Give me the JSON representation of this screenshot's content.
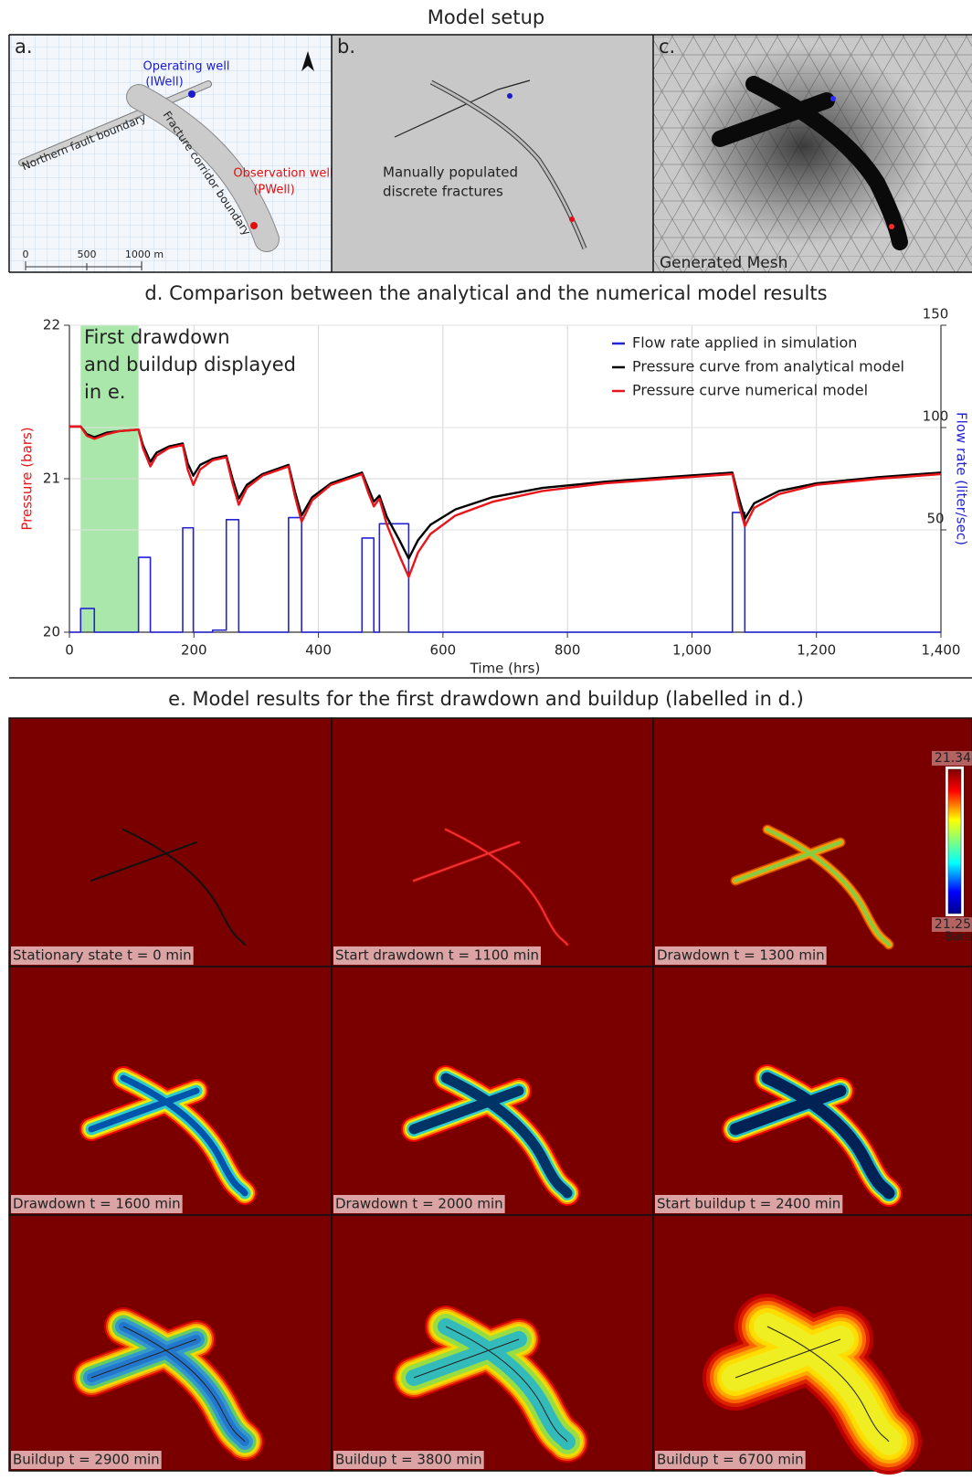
{
  "setup": {
    "title": "Model setup",
    "panel_a": {
      "label": "a.",
      "operating_well": [
        "Operating well",
        "(IWell)"
      ],
      "observation_well": [
        "Observation well",
        "(PWell)"
      ],
      "fault": "Northern fault boundary",
      "corridor": "Fracture corridor boundary",
      "scale": [
        "0",
        "500",
        "1000 m"
      ]
    },
    "panel_b": {
      "label": "b.",
      "note": [
        "Manually populated",
        "discrete fractures"
      ]
    },
    "panel_c": {
      "label": "c.",
      "note": "Generated Mesh"
    }
  },
  "chart_data": {
    "type": "line",
    "title": "d. Comparison between the analytical and the numerical model results",
    "x_label": "Time (hrs)",
    "y_label": "Pressure (bars)",
    "y2_label": "Flow rate (liter/sec)",
    "annotation": [
      "First drawdown",
      "and buildup displayed",
      "in e."
    ],
    "highlight_x": [
      18,
      111
    ],
    "xlim": [
      0,
      1400
    ],
    "xticks": [
      0,
      200,
      400,
      600,
      800,
      {
        "value": 1000,
        "label": "1,000"
      },
      {
        "value": 1200,
        "label": "1,200"
      },
      {
        "value": 1400,
        "label": "1,400"
      }
    ],
    "ylim": [
      20,
      22
    ],
    "yticks": [
      20,
      21,
      22
    ],
    "y2lim": [
      0,
      150
    ],
    "y2ticks": [
      50,
      100,
      150
    ],
    "grid": true,
    "legend": "upper right",
    "series": [
      {
        "name": "Flow rate applied in simulation",
        "color": "#2323d6",
        "axis": "y2",
        "x": [
          0,
          18,
          18,
          40,
          40,
          111,
          111,
          130,
          130,
          182,
          182,
          199,
          199,
          230,
          230,
          252,
          252,
          272,
          272,
          352,
          352,
          373,
          373,
          470,
          470,
          489,
          489,
          498,
          498,
          545,
          545,
          1065,
          1065,
          1085,
          1085,
          1400
        ],
        "values": [
          0,
          0,
          11.6,
          11.6,
          0,
          0,
          36.6,
          36.6,
          0,
          0,
          51,
          51,
          0,
          0,
          1,
          1,
          55,
          55,
          0,
          0,
          56,
          56,
          0,
          0,
          46,
          46,
          0,
          0,
          53,
          53,
          0,
          0,
          58.5,
          58.5,
          0,
          0
        ]
      },
      {
        "name": "Pressure curve from analytical model",
        "color": "#000000",
        "axis": "y",
        "x": [
          0,
          18,
          28,
          40,
          60,
          80,
          111,
          118,
          130,
          140,
          160,
          182,
          190,
          199,
          210,
          230,
          252,
          262,
          272,
          285,
          310,
          352,
          362,
          373,
          390,
          420,
          470,
          480,
          489,
          498,
          510,
          530,
          545,
          560,
          580,
          620,
          680,
          760,
          860,
          960,
          1065,
          1075,
          1085,
          1100,
          1140,
          1200,
          1300,
          1400
        ],
        "values": [
          21.34,
          21.34,
          21.29,
          21.27,
          21.3,
          21.31,
          21.32,
          21.22,
          21.11,
          21.17,
          21.21,
          21.23,
          21.1,
          21.02,
          21.09,
          21.13,
          21.15,
          21.0,
          20.87,
          20.96,
          21.03,
          21.09,
          20.92,
          20.76,
          20.88,
          20.97,
          21.04,
          20.94,
          20.85,
          20.89,
          20.75,
          20.6,
          20.48,
          20.6,
          20.7,
          20.8,
          20.88,
          20.94,
          20.98,
          21.01,
          21.04,
          20.88,
          20.74,
          20.84,
          20.92,
          20.97,
          21.01,
          21.04
        ]
      },
      {
        "name": "Pressure curve numerical model",
        "color": "#e8161b",
        "axis": "y",
        "x": [
          0,
          18,
          28,
          40,
          60,
          80,
          111,
          118,
          130,
          140,
          160,
          182,
          190,
          199,
          210,
          230,
          252,
          262,
          272,
          285,
          310,
          352,
          362,
          373,
          390,
          420,
          470,
          480,
          489,
          498,
          510,
          530,
          545,
          560,
          580,
          620,
          680,
          760,
          860,
          960,
          1065,
          1075,
          1085,
          1100,
          1140,
          1200,
          1300,
          1400
        ],
        "values": [
          21.34,
          21.34,
          21.28,
          21.26,
          21.29,
          21.31,
          21.32,
          21.2,
          21.08,
          21.15,
          21.2,
          21.22,
          21.06,
          20.96,
          21.06,
          21.12,
          21.14,
          20.97,
          20.83,
          20.94,
          21.02,
          21.08,
          20.89,
          20.72,
          20.86,
          20.96,
          21.03,
          20.91,
          20.82,
          20.87,
          20.7,
          20.5,
          20.36,
          20.52,
          20.64,
          20.76,
          20.85,
          20.92,
          20.97,
          21.0,
          21.03,
          20.84,
          20.69,
          20.81,
          20.9,
          20.96,
          21.0,
          21.03
        ]
      }
    ]
  },
  "results": {
    "title": "e. Model results for the first drawdown and buildup (labelled in d.)",
    "captions": [
      "Stationary state t = 0 min",
      "Start drawdown t = 1100 min",
      "Drawdown t = 1300 min",
      "Drawdown t = 1600 min",
      "Drawdown t = 2000 min",
      "Start buildup t = 2400 min",
      "Buildup t = 2900 min",
      "Buildup t = 3800 min",
      "Buildup t = 6700 min"
    ],
    "colorbar": {
      "lim": [
        21.25,
        21.34
      ],
      "ticks": [
        21.25,
        21.34
      ],
      "unit": "Bars"
    }
  }
}
